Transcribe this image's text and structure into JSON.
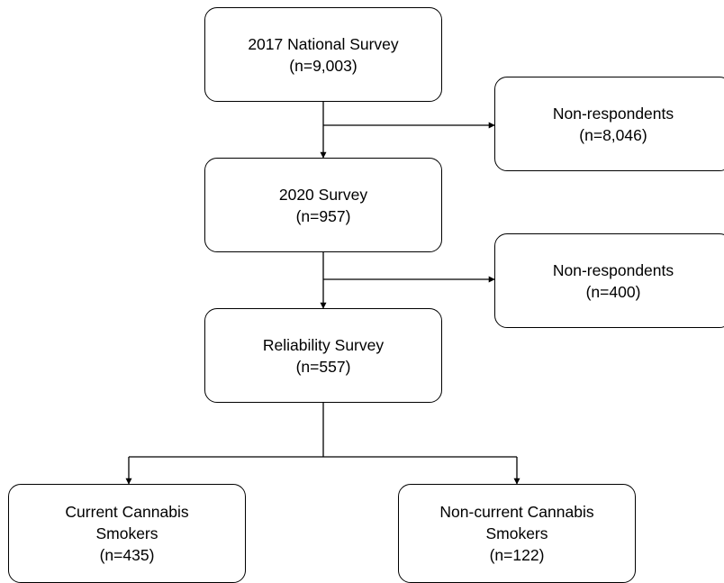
{
  "nodes": {
    "national": {
      "line1": "2017 National Survey",
      "line2": "(n=9,003)"
    },
    "nonresp1": {
      "line1": "Non-respondents",
      "line2": "(n=8,046)"
    },
    "survey2020": {
      "line1": "2020 Survey",
      "line2": "(n=957)"
    },
    "nonresp2": {
      "line1": "Non-respondents",
      "line2": "(n=400)"
    },
    "reliability": {
      "line1": "Reliability Survey",
      "line2": "(n=557)"
    },
    "current": {
      "line1": "Current Cannabis",
      "line2": "Smokers",
      "line3": "(n=435)"
    },
    "noncurrent": {
      "line1": "Non-current Cannabis",
      "line2": "Smokers",
      "line3": "(n=122)"
    }
  }
}
